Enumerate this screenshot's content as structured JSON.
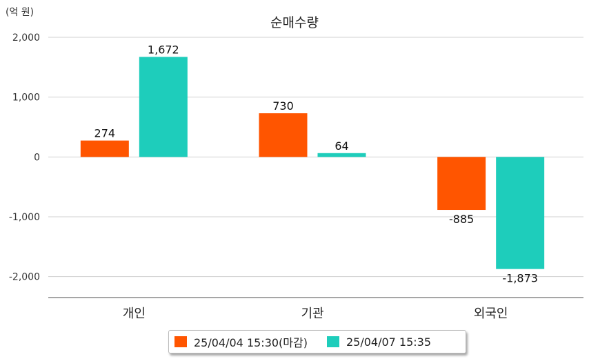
{
  "chart_data": {
    "type": "bar",
    "title": "순매수량",
    "unit_label": "(억 원)",
    "categories": [
      "개인",
      "기관",
      "외국인"
    ],
    "series": [
      {
        "name": "25/04/04 15:30(마감)",
        "color": "#ff5500",
        "values": [
          274,
          730,
          -885
        ],
        "labels": [
          "274",
          "730",
          "-885"
        ]
      },
      {
        "name": "25/04/07 15:35",
        "color": "#1ecdbb",
        "values": [
          1672,
          64,
          -1873
        ],
        "labels": [
          "1,672",
          "64",
          "-1,873"
        ]
      }
    ],
    "yticks": [
      2000,
      1000,
      0,
      -1000,
      -2000
    ],
    "ytick_labels": [
      "2,000",
      "1,000",
      "0",
      "-1,000",
      "-2,000"
    ],
    "ylim": [
      -2350,
      2000
    ],
    "grid": true,
    "legend_position": "bottom"
  }
}
